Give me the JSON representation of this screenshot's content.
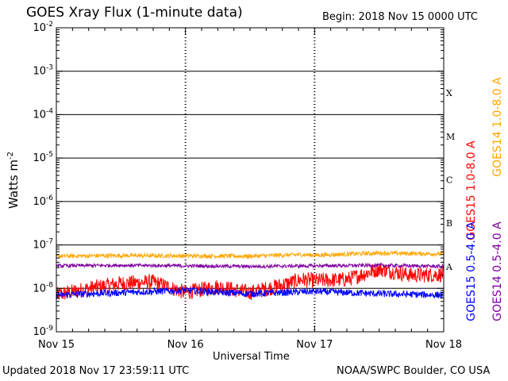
{
  "header": {
    "title": "GOES Xray Flux (1-minute data)",
    "begin": "Begin:  2018 Nov 15 0000 UTC"
  },
  "footer": {
    "updated": "Updated 2018 Nov 17 23:59:11 UTC",
    "credit": "NOAA/SWPC Boulder, CO USA"
  },
  "chart_data": {
    "type": "line",
    "xlabel": "Universal Time",
    "ylabel": "Watts m",
    "ylabel_sup": "-2",
    "y_scale": "log",
    "ylim": [
      1e-09,
      0.01
    ],
    "xlim": [
      0,
      3
    ],
    "x_ticks": [
      {
        "value": 0,
        "label": "Nov 15"
      },
      {
        "value": 1,
        "label": "Nov 16"
      },
      {
        "value": 2,
        "label": "Nov 17"
      },
      {
        "value": 3,
        "label": "Nov 18"
      }
    ],
    "y_ticks": [
      {
        "exp": -2,
        "base": "10",
        "sup": "-2"
      },
      {
        "exp": -3,
        "base": "10",
        "sup": "-3"
      },
      {
        "exp": -4,
        "base": "10",
        "sup": "-4"
      },
      {
        "exp": -5,
        "base": "10",
        "sup": "-5"
      },
      {
        "exp": -6,
        "base": "10",
        "sup": "-6"
      },
      {
        "exp": -7,
        "base": "10",
        "sup": "-7"
      },
      {
        "exp": -8,
        "base": "10",
        "sup": "-8"
      },
      {
        "exp": -9,
        "base": "10",
        "sup": "-9"
      }
    ],
    "flare_classes": [
      {
        "label": "X",
        "exp": -3.5
      },
      {
        "label": "M",
        "exp": -4.5
      },
      {
        "label": "C",
        "exp": -5.5
      },
      {
        "label": "B",
        "exp": -6.5
      },
      {
        "label": "A",
        "exp": -7.5
      }
    ],
    "grid": true,
    "series": [
      {
        "name": "GOES15 1.0-8.0 A",
        "color": "#ff0000",
        "x": [
          0,
          0.25,
          0.5,
          0.75,
          1.0,
          1.25,
          1.5,
          1.75,
          1.9,
          2.0,
          2.25,
          2.5,
          2.75,
          3.0
        ],
        "y": [
          7e-09,
          1e-08,
          1.3e-08,
          1.4e-08,
          8e-09,
          1.1e-08,
          8e-09,
          1.2e-08,
          1.6e-08,
          1.5e-08,
          1.6e-08,
          2.8e-08,
          2e-08,
          2.1e-08
        ]
      },
      {
        "name": "GOES14 1.0-8.0 A",
        "color": "#ffa500",
        "x": [
          0,
          0.5,
          1.0,
          1.5,
          1.9,
          2.0,
          2.5,
          3.0
        ],
        "y": [
          5.5e-08,
          5.7e-08,
          5.6e-08,
          5.5e-08,
          6e-08,
          5.8e-08,
          6.5e-08,
          6.2e-08
        ]
      },
      {
        "name": "GOES15 0.5-4.0 A",
        "color": "#0000ff",
        "x": [
          0,
          0.5,
          1.0,
          1.5,
          2.0,
          2.5,
          3.0
        ],
        "y": [
          7e-09,
          8e-09,
          9e-09,
          7.5e-09,
          8.5e-09,
          7.5e-09,
          7e-09
        ]
      },
      {
        "name": "GOES14 0.5-4.0 A",
        "color": "#8000a0",
        "x": [
          0,
          0.5,
          1.0,
          1.5,
          2.0,
          2.5,
          3.0
        ],
        "y": [
          3.3e-08,
          3.4e-08,
          3.3e-08,
          3.2e-08,
          3.3e-08,
          3.4e-08,
          3.2e-08
        ]
      }
    ]
  }
}
